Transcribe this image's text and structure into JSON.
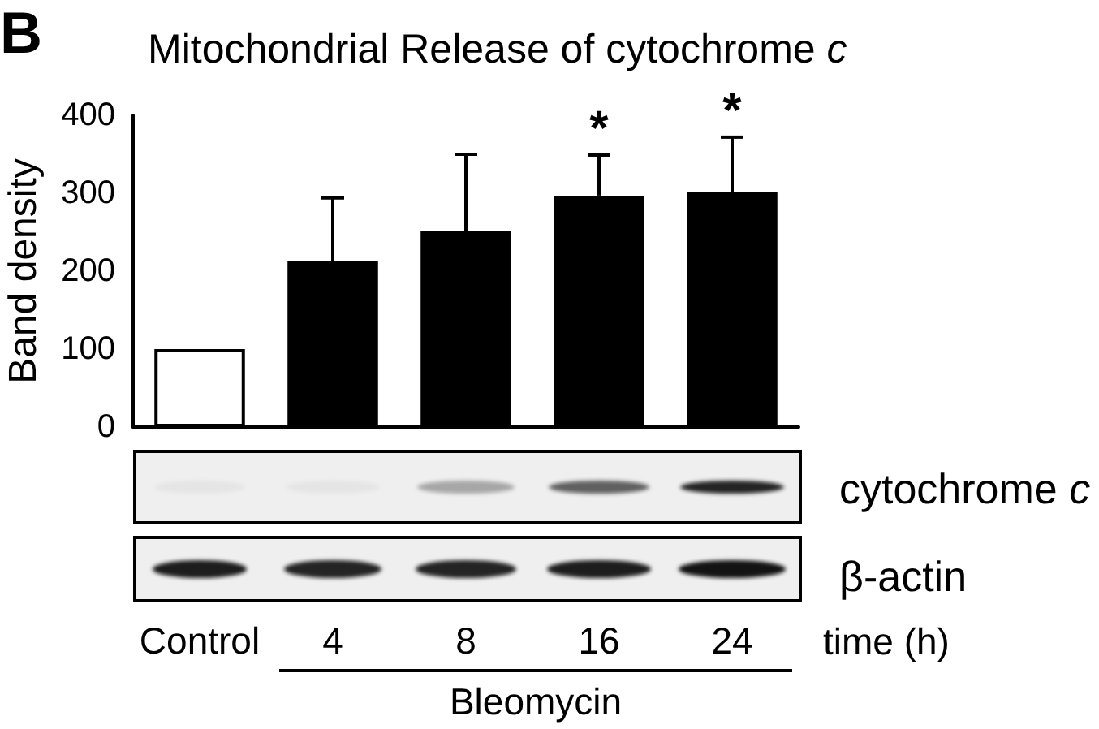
{
  "chart_data": {
    "type": "bar",
    "title": "Mitochondrial Release of cytochrome c",
    "ylabel": "Band density",
    "xlabel": "time (h)",
    "categories": [
      "Control",
      "4",
      "8",
      "16",
      "24"
    ],
    "values": [
      100,
      213,
      252,
      297,
      302
    ],
    "colors": [
      "#ffffff",
      "#000000",
      "#000000",
      "#000000",
      "#000000"
    ],
    "errors": [
      null,
      [
        213,
        294
      ],
      [
        252,
        350
      ],
      [
        297,
        349
      ],
      [
        302,
        372
      ]
    ],
    "ylim": [
      0,
      400
    ],
    "yticks": [
      0,
      100,
      200,
      300,
      400
    ],
    "annotations": [
      "B",
      {
        "text": "*",
        "x": "16",
        "y": 349
      },
      {
        "text": "*",
        "x": "24",
        "y": 372
      },
      "cytochrome c",
      "β-actin",
      "Bleomycin"
    ]
  }
}
